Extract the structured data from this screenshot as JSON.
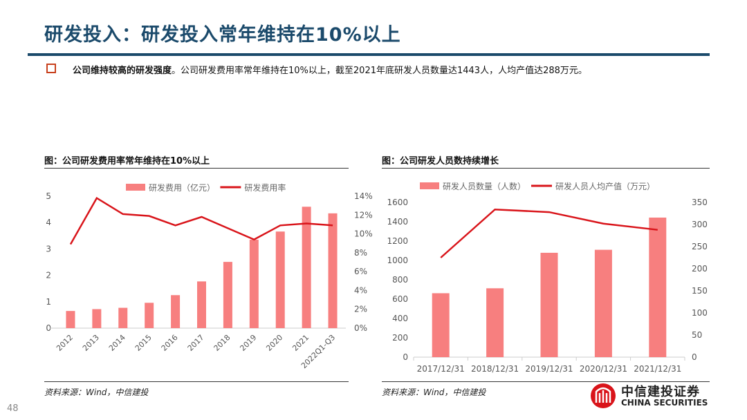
{
  "header": {
    "title": "研发投入：研发投入常年维持在10%以上"
  },
  "summary": {
    "bold": "公司维持较高的研发强度",
    "text": "。公司研发费用率常年维持在10%以上，截至2021年底研发人员数量达1443人，人均产值达288万元。"
  },
  "colors": {
    "bar": "#f77f7f",
    "line": "#d9141a",
    "title": "#1b4a6b",
    "bullet": "#c8401c"
  },
  "chart_data": [
    {
      "type": "bar+line",
      "title": "图：公司研发费用率常年维持在10%以上",
      "categories": [
        "2012",
        "2013",
        "2014",
        "2015",
        "2016",
        "2017",
        "2018",
        "2019",
        "2020",
        "2021",
        "2022Q1-Q3"
      ],
      "series": [
        {
          "name": "研发费用（亿元）",
          "type": "bar",
          "axis": "left",
          "values": [
            0.65,
            0.72,
            0.77,
            0.96,
            1.25,
            1.77,
            2.51,
            3.35,
            3.66,
            4.6,
            4.35
          ]
        },
        {
          "name": "研发费用率",
          "type": "line",
          "axis": "right",
          "values": [
            8.9,
            13.8,
            12.1,
            11.9,
            10.9,
            11.8,
            10.6,
            9.4,
            10.9,
            11.1,
            10.9
          ]
        }
      ],
      "ylim": [
        0,
        5
      ],
      "yticks": [
        "0",
        "1",
        "2",
        "3",
        "4",
        "5"
      ],
      "y2lim": [
        0,
        14
      ],
      "y2ticks": [
        "0%",
        "2%",
        "4%",
        "6%",
        "8%",
        "10%",
        "12%",
        "14%"
      ],
      "legend": "top",
      "grid": false,
      "source": "资料来源：Wind，中信建投"
    },
    {
      "type": "bar+line",
      "title": "图：公司研发人员数持续增长",
      "categories": [
        "2017/12/31",
        "2018/12/31",
        "2019/12/31",
        "2020/12/31",
        "2021/12/31"
      ],
      "series": [
        {
          "name": "研发人员数量（人数）",
          "type": "bar",
          "axis": "left",
          "values": [
            661,
            712,
            1079,
            1110,
            1443
          ]
        },
        {
          "name": "研发人员人均产值（万元）",
          "type": "line",
          "axis": "right",
          "values": [
            225,
            334,
            328,
            302,
            288
          ]
        }
      ],
      "ylim": [
        0,
        1600
      ],
      "yticks": [
        "0",
        "200",
        "400",
        "600",
        "800",
        "1000",
        "1200",
        "1400",
        "1600"
      ],
      "y2lim": [
        0,
        350
      ],
      "y2ticks": [
        "0",
        "50",
        "100",
        "150",
        "200",
        "250",
        "300",
        "350"
      ],
      "legend": "top",
      "grid": false,
      "source": "资料来源：Wind，中信建投"
    }
  ],
  "footer": {
    "page": "48",
    "logo_cn": "中信建投证券",
    "logo_en": "CHINA SECURITIES"
  }
}
